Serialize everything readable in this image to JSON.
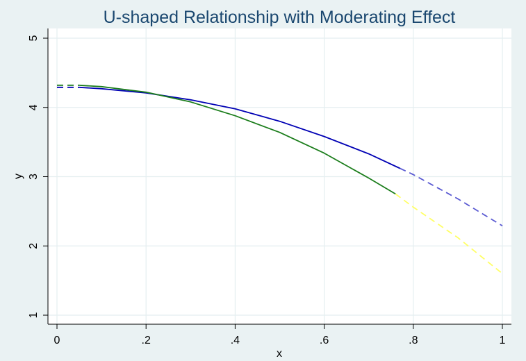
{
  "chart_data": {
    "type": "line",
    "title": "U-shaped Relationship with Moderating Effect",
    "xlabel": "x",
    "ylabel": "y",
    "xlim": [
      0,
      1
    ],
    "ylim": [
      1,
      5
    ],
    "x_ticks": [
      0,
      0.2,
      0.4,
      0.6,
      0.8,
      1
    ],
    "x_tick_labels": [
      "0",
      ".2",
      ".4",
      ".6",
      ".8",
      "1"
    ],
    "y_ticks": [
      1,
      2,
      3,
      4,
      5
    ],
    "y_tick_labels": [
      "1",
      "2",
      "3",
      "4",
      "5"
    ],
    "grid": true,
    "legend": "none",
    "series": [
      {
        "color": "#0000b4",
        "segments": [
          {
            "style": "dashed",
            "x": [
              0,
              0.05
            ],
            "y": [
              4.29,
              4.29
            ]
          },
          {
            "style": "solid",
            "x": [
              0.05,
              0.1,
              0.2,
              0.3,
              0.4,
              0.5,
              0.6,
              0.7,
              0.77
            ],
            "y": [
              4.29,
              4.27,
              4.21,
              4.11,
              3.98,
              3.8,
              3.58,
              3.33,
              3.12
            ]
          },
          {
            "style": "dashed",
            "color": "#5a5ad2",
            "x": [
              0.77,
              0.8,
              0.9,
              1
            ],
            "y": [
              3.12,
              3.03,
              2.68,
              2.29
            ]
          }
        ]
      },
      {
        "color": "#1b7d1b",
        "segments": [
          {
            "style": "dashed",
            "x": [
              0,
              0.05
            ],
            "y": [
              4.32,
              4.32
            ]
          },
          {
            "style": "solid",
            "x": [
              0.05,
              0.1,
              0.2,
              0.3,
              0.4,
              0.5,
              0.6,
              0.7,
              0.76
            ],
            "y": [
              4.32,
              4.3,
              4.22,
              4.08,
              3.88,
              3.64,
              3.34,
              2.98,
              2.75
            ]
          },
          {
            "style": "dashed",
            "color": "#ffff66",
            "x": [
              0.76,
              0.8,
              0.9,
              1
            ],
            "y": [
              2.75,
              2.56,
              2.12,
              1.6
            ]
          }
        ]
      }
    ]
  }
}
